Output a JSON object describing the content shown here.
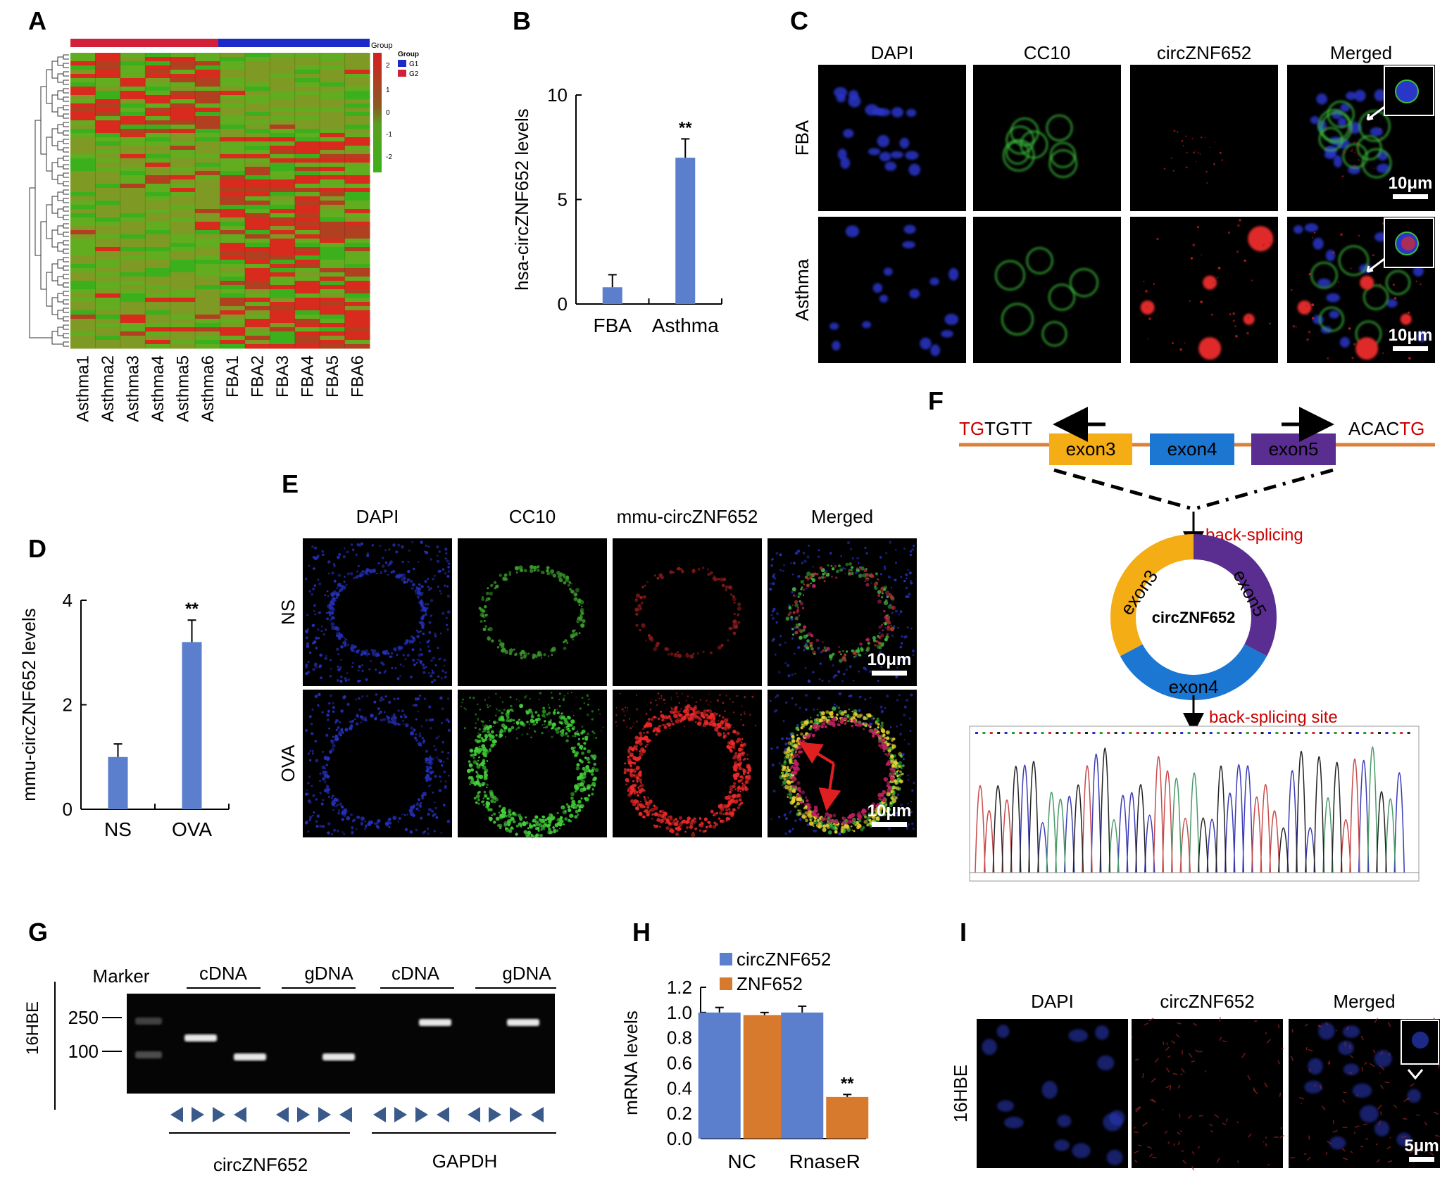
{
  "panels": {
    "A": {
      "label": "A",
      "samples": [
        "Asthma1",
        "Asthma2",
        "Asthma3",
        "Asthma4",
        "Asthma5",
        "Asthma6",
        "FBA1",
        "FBA2",
        "FBA3",
        "FBA4",
        "FBA5",
        "FBA6"
      ],
      "legend_title": "Group",
      "legend_group_title": "Group",
      "legend_groups": [
        "G1",
        "G2"
      ],
      "legend_scale": [
        "2",
        "1",
        "0",
        "-1",
        "-2"
      ],
      "colors": {
        "high": "#d62020",
        "low": "#3cb01c",
        "g_asthma": "#d0203a",
        "g_fba": "#1c2ac8"
      }
    },
    "B": {
      "label": "B"
    },
    "C": {
      "label": "C",
      "columns": [
        "DAPI",
        "CC10",
        "circZNF652",
        "Merged"
      ],
      "rows": [
        "FBA",
        "Asthma"
      ],
      "scale": "10μm"
    },
    "D": {
      "label": "D"
    },
    "E": {
      "label": "E",
      "columns": [
        "DAPI",
        "CC10",
        "mmu-circZNF652",
        "Merged"
      ],
      "rows": [
        "NS",
        "OVA"
      ],
      "scale": "10μm"
    },
    "F": {
      "label": "F",
      "left_seq_red": "TG",
      "left_seq_black": "TGTT",
      "right_seq_black": "ACAC",
      "right_seq_red": "TG",
      "exons": [
        "exon3",
        "exon4",
        "exon5"
      ],
      "back_splicing": "back-splicing",
      "back_splicing_site": "back-splicing site",
      "circ_name": "circZNF652",
      "colors": {
        "exon3": "#f5ad16",
        "exon4": "#1b77d2",
        "exon5": "#5a2d90",
        "line": "#d9803c",
        "red": "#cc0000"
      }
    },
    "G": {
      "label": "G",
      "marker": "Marker",
      "headers": [
        "cDNA",
        "gDNA",
        "cDNA",
        "gDNA"
      ],
      "sizes": [
        "250",
        "100"
      ],
      "cell": "16HBE",
      "groups": [
        "circZNF652",
        "GAPDH"
      ]
    },
    "H": {
      "label": "H"
    },
    "I": {
      "label": "I",
      "columns": [
        "DAPI",
        "circZNF652",
        "Merged"
      ],
      "row": "16HBE",
      "scale": "5μm"
    }
  },
  "chart_data": [
    {
      "panel": "B",
      "type": "bar",
      "categories": [
        "FBA",
        "Asthma"
      ],
      "values": [
        0.8,
        7.0
      ],
      "errors": [
        0.6,
        0.9
      ],
      "ylabel": "hsa-circZNF652 levels",
      "ylim": [
        0,
        10
      ],
      "yticks": [
        "0",
        "5",
        "10"
      ],
      "annotations": [
        "",
        "**"
      ],
      "color": "#5b7fcc"
    },
    {
      "panel": "D",
      "type": "bar",
      "categories": [
        "NS",
        "OVA"
      ],
      "values": [
        1.0,
        3.2
      ],
      "errors": [
        0.25,
        0.42
      ],
      "ylabel": "mmu-circZNF652 levels",
      "ylim": [
        0,
        4
      ],
      "yticks": [
        "0",
        "2",
        "4"
      ],
      "annotations": [
        "",
        "**"
      ],
      "color": "#5b7fcc"
    },
    {
      "panel": "H",
      "type": "bar",
      "categories": [
        "NC",
        "RnaseR"
      ],
      "series": [
        {
          "name": "circZNF652",
          "values": [
            1.0,
            1.0
          ],
          "errors": [
            0.04,
            0.05
          ],
          "color": "#5b7fcc"
        },
        {
          "name": "ZNF652",
          "values": [
            0.98,
            0.33
          ],
          "errors": [
            0.02,
            0.02
          ],
          "color": "#d77a2e"
        }
      ],
      "ylabel": "mRNA levels",
      "ylim": [
        0,
        1.2
      ],
      "yticks": [
        "0.0",
        "0.2",
        "0.4",
        "0.6",
        "0.8",
        "1.0",
        "1.2"
      ],
      "annotations": [
        "",
        "**"
      ]
    }
  ]
}
